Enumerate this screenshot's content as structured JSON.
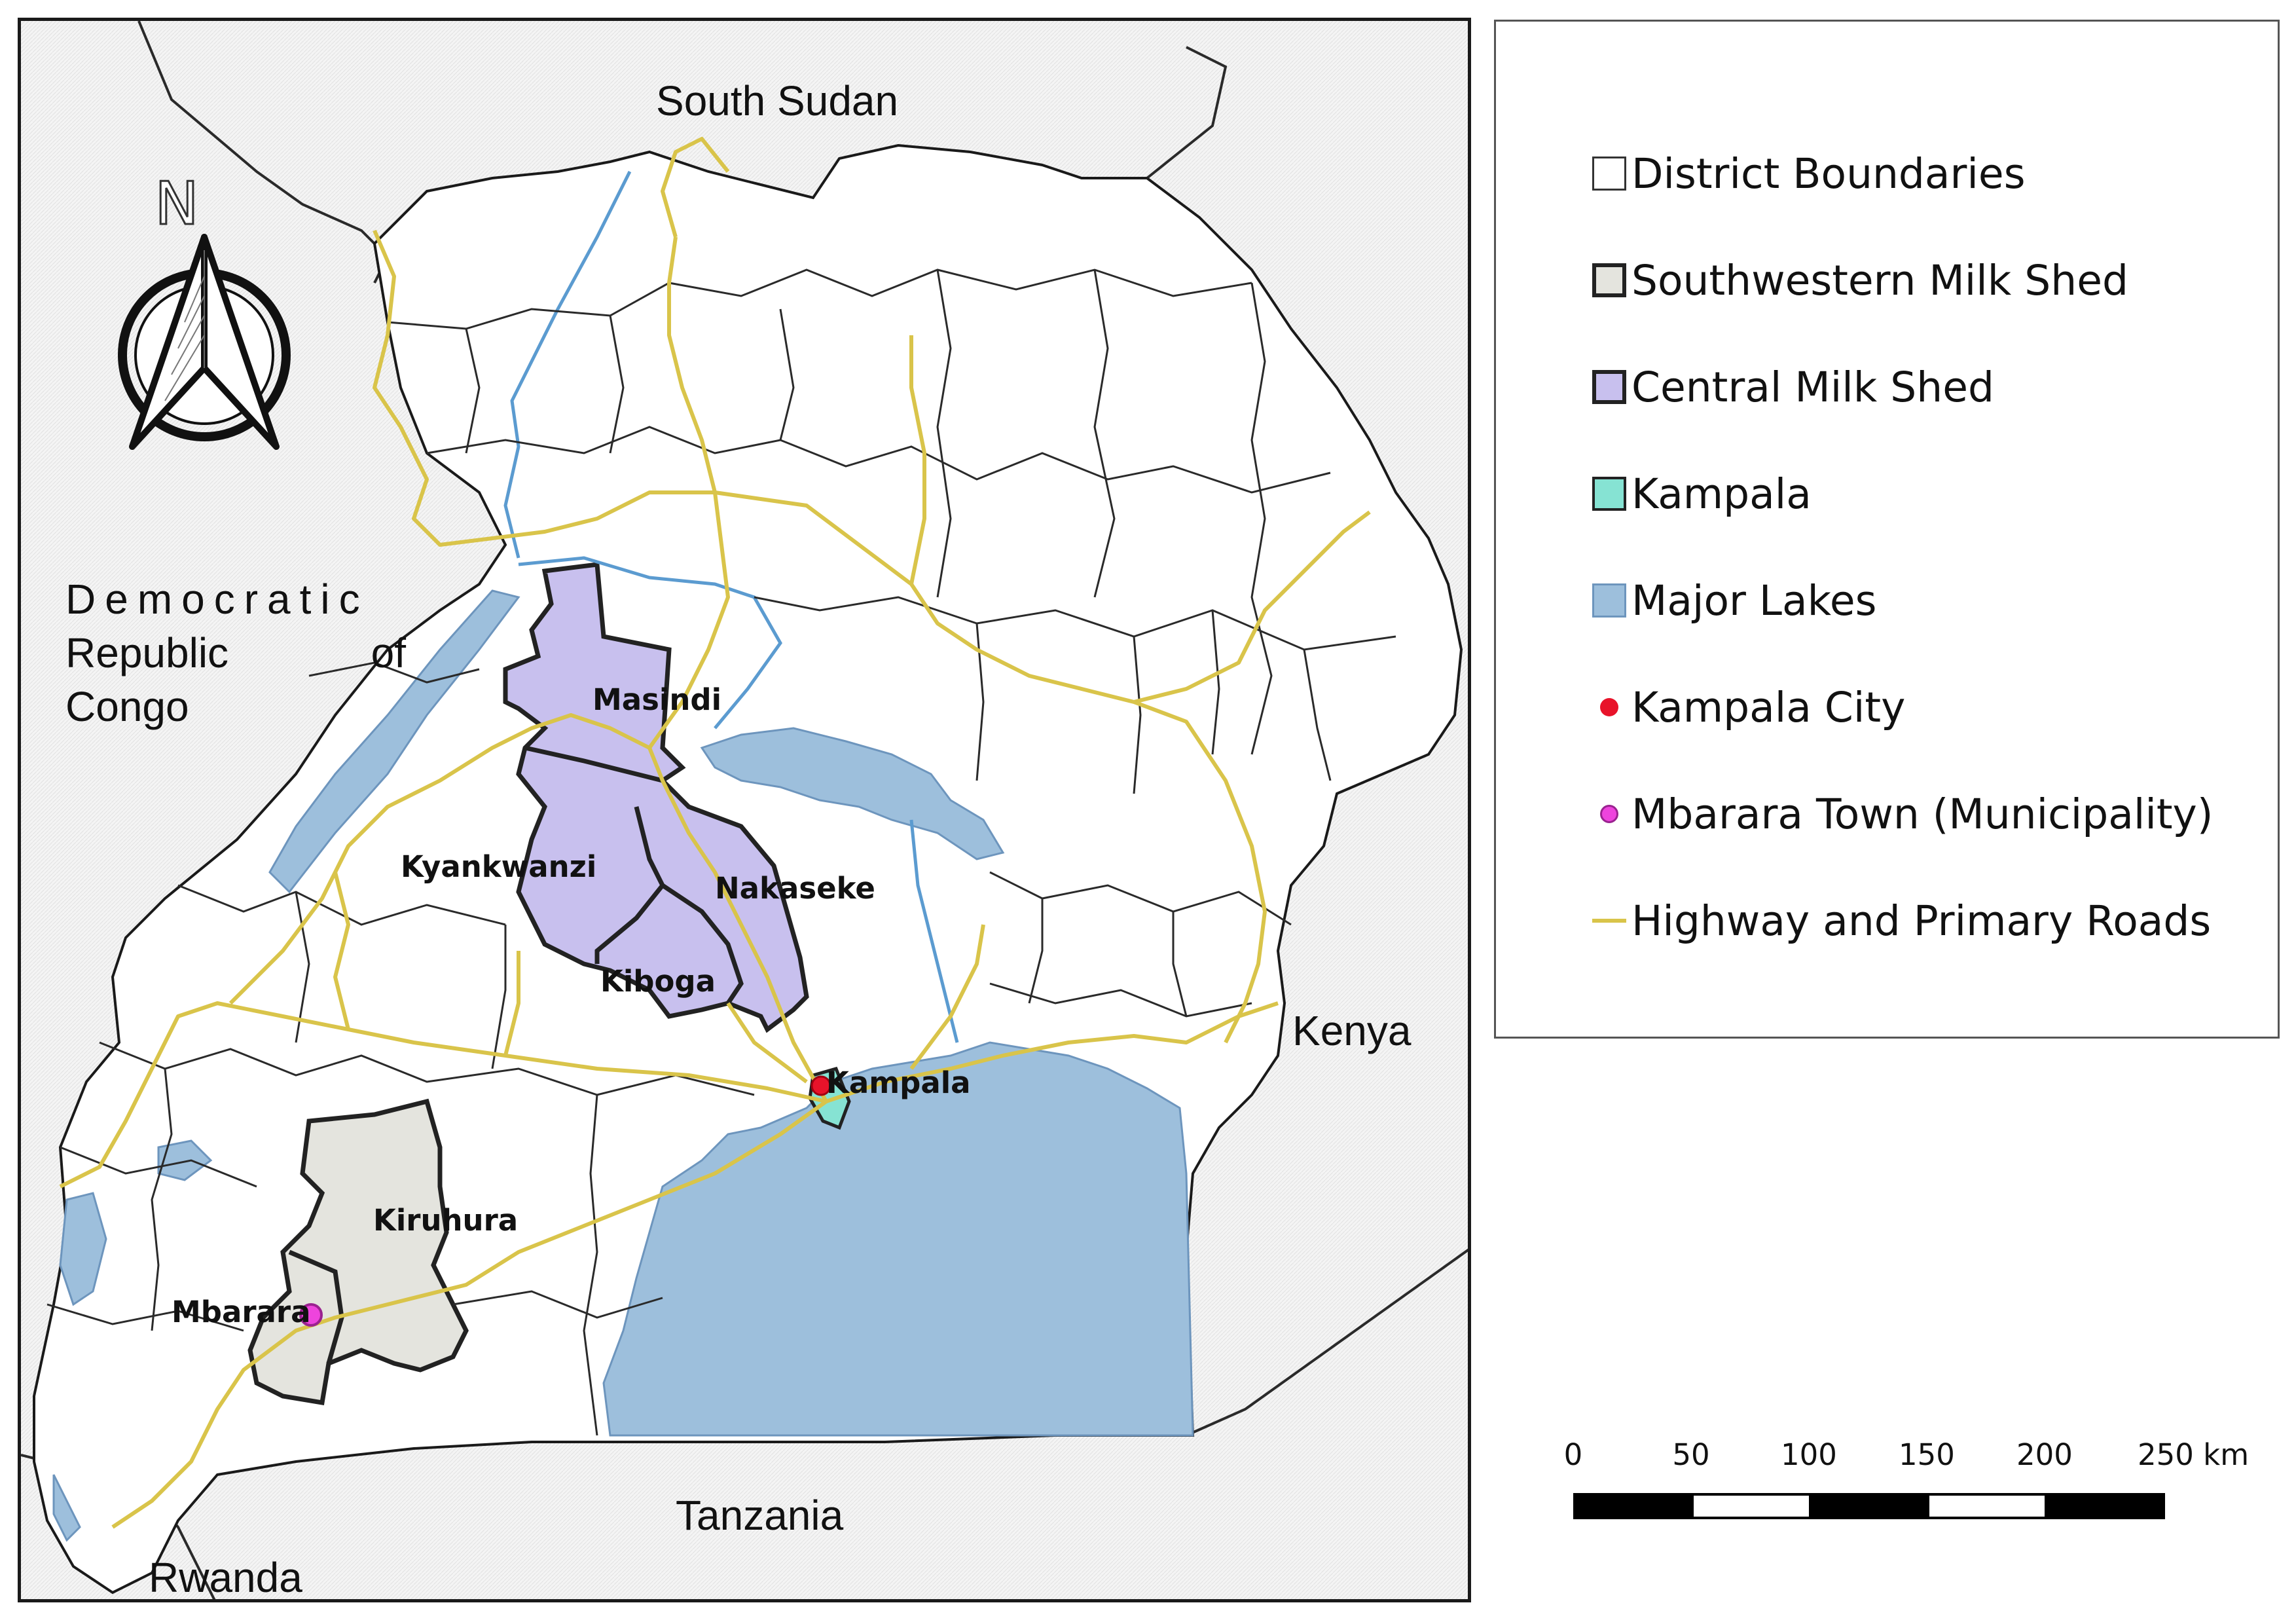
{
  "map": {
    "countries": {
      "north": "South Sudan",
      "east": "Kenya",
      "south": "Tanzania",
      "southwest": "Rwanda",
      "west_line1": "Democratic",
      "west_line2_a": "Republic",
      "west_line2_b": "of",
      "west_line3": "Congo"
    },
    "districts": {
      "masindi": "Masindi",
      "kyankwanzi": "Kyankwanzi",
      "nakaseke": "Nakaseke",
      "kiboga": "Kiboga",
      "kampala": "Kampala",
      "kiruhura": "Kiruhura",
      "mbarara": "Mbarara"
    },
    "north_arrow_label": "N",
    "colors": {
      "background": "#f2f2f2",
      "uganda_fill": "#ffffff",
      "southwestern_milk_shed": "#e4e4de",
      "central_milk_shed": "#c8c0ee",
      "kampala": "#86e3d3",
      "lakes": "#9dbfdc",
      "rivers": "#5b9bd0",
      "roads": "#d9c44a",
      "kampala_city": "#e8132a",
      "mbarara_town": "#ee44dd"
    }
  },
  "legend": {
    "items": [
      {
        "label": "District Boundaries",
        "swatch": "box",
        "fill": "#ffffff",
        "stroke": "#333333"
      },
      {
        "label": "Southwestern Milk Shed",
        "swatch": "box",
        "fill": "#e4e4de",
        "stroke": "#222222"
      },
      {
        "label": "Central Milk Shed",
        "swatch": "box",
        "fill": "#c8c0ee",
        "stroke": "#222222"
      },
      {
        "label": "Kampala",
        "swatch": "box",
        "fill": "#86e3d3",
        "stroke": "#222222"
      },
      {
        "label": "Major Lakes",
        "swatch": "box",
        "fill": "#9dbfdc",
        "stroke": "#6d95bd"
      },
      {
        "label": "Kampala City",
        "swatch": "dot",
        "fill": "#e8132a",
        "stroke": "#e8132a"
      },
      {
        "label": "Mbarara Town (Municipality)",
        "swatch": "dot",
        "fill": "#ee44dd",
        "stroke": "#9a2290"
      },
      {
        "label": "Highway and Primary Roads",
        "swatch": "line",
        "fill": "#d9c44a",
        "stroke": "#d9c44a"
      }
    ]
  },
  "scale_bar": {
    "ticks": [
      "0",
      "50",
      "100",
      "150",
      "200",
      "250 km"
    ]
  }
}
